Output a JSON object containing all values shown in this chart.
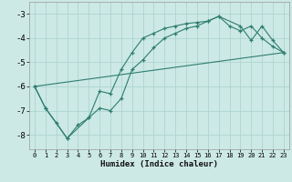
{
  "xlabel": "Humidex (Indice chaleur)",
  "bg_color": "#cce9e5",
  "grid_color": "#afd4cf",
  "line_color": "#2e7d70",
  "xlim": [
    -0.5,
    23.5
  ],
  "ylim": [
    -8.6,
    -2.5
  ],
  "yticks": [
    -8,
    -7,
    -6,
    -5,
    -4,
    -3
  ],
  "xticks": [
    0,
    1,
    2,
    3,
    4,
    5,
    6,
    7,
    8,
    9,
    10,
    11,
    12,
    13,
    14,
    15,
    16,
    17,
    18,
    19,
    20,
    21,
    22,
    23
  ],
  "line1_x": [
    0,
    1,
    2,
    3,
    4,
    5,
    6,
    7,
    8,
    9,
    10,
    11,
    12,
    13,
    14,
    15,
    16,
    17,
    18,
    19,
    20,
    21,
    22,
    23
  ],
  "line1_y": [
    -6.0,
    -6.9,
    -7.5,
    -8.15,
    -7.6,
    -7.3,
    -6.9,
    -7.0,
    -6.5,
    -5.3,
    -4.9,
    -4.4,
    -4.0,
    -3.8,
    -3.6,
    -3.5,
    -3.3,
    -3.1,
    -3.5,
    -3.7,
    -3.5,
    -4.0,
    -4.35,
    -4.6
  ],
  "line2_x": [
    0,
    1,
    3,
    5,
    6,
    7,
    8,
    9,
    10,
    11,
    12,
    13,
    14,
    15,
    16,
    17,
    19,
    20,
    21,
    22,
    23
  ],
  "line2_y": [
    -6.0,
    -6.9,
    -8.15,
    -7.3,
    -6.2,
    -6.3,
    -5.3,
    -4.6,
    -4.0,
    -3.8,
    -3.6,
    -3.5,
    -3.4,
    -3.35,
    -3.3,
    -3.1,
    -3.5,
    -4.1,
    -3.5,
    -4.1,
    -4.6
  ],
  "line3_x": [
    0,
    23
  ],
  "line3_y": [
    -6.0,
    -4.6
  ]
}
